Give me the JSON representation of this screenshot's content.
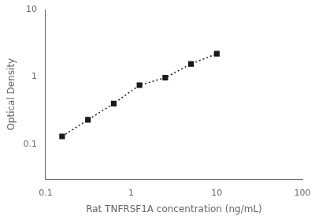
{
  "chart_data": {
    "type": "line",
    "x": [
      0.156,
      0.3125,
      0.625,
      1.25,
      2.5,
      5.0,
      10.0
    ],
    "values": [
      0.13,
      0.23,
      0.4,
      0.75,
      0.97,
      1.55,
      2.2
    ],
    "xlabel": "Rat TNFRSF1A concentration (ng/mL)",
    "ylabel": "Optical Density",
    "xlim": [
      0.1,
      100
    ],
    "ylim": [
      0.03,
      10
    ],
    "xticks": [
      0.1,
      1,
      10,
      100
    ],
    "yticks": [
      0.1,
      1,
      10
    ],
    "log": true,
    "grid": false,
    "color": "#1a1a1a",
    "marker": "square",
    "line_style": "dotted"
  }
}
